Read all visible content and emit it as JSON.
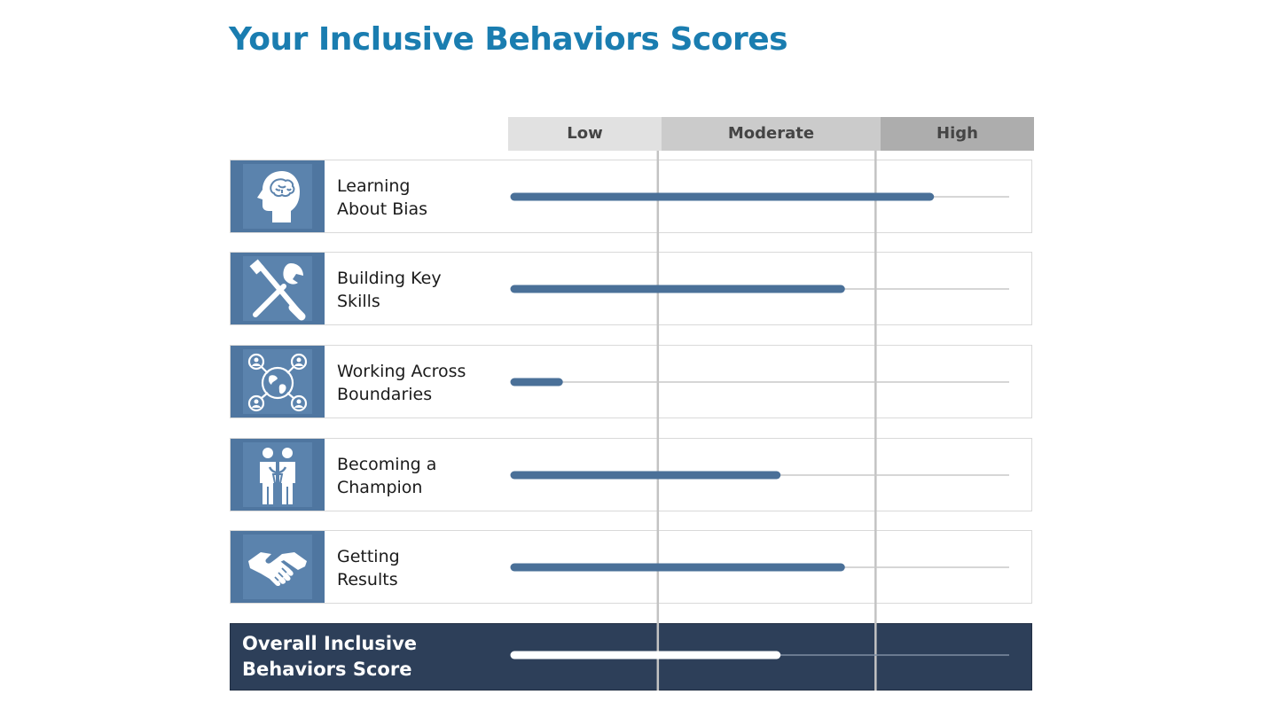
{
  "title": "Your Inclusive Behaviors Scores",
  "chart_data": {
    "type": "bar",
    "orientation": "horizontal",
    "bands": [
      "Low",
      "Moderate",
      "High"
    ],
    "band_boundaries": [
      0.29,
      0.73
    ],
    "categories": [
      "Learning About Bias",
      "Building Key Skills",
      "Working Across Boundaries",
      "Becoming a Champion",
      "Getting Results"
    ],
    "category_lines": [
      [
        "Learning",
        "About Bias"
      ],
      [
        "Building Key",
        "Skills"
      ],
      [
        "Working Across",
        "Boundaries"
      ],
      [
        "Becoming a",
        "Champion"
      ],
      [
        "Getting",
        "Results"
      ]
    ],
    "values": [
      0.84,
      0.66,
      0.09,
      0.53,
      0.66
    ],
    "overall": {
      "lines": [
        "Overall Inclusive",
        "Behaviors Score"
      ],
      "value": 0.53
    },
    "xlim": [
      0,
      1
    ],
    "bar_color": "#4a7098",
    "overall_bar_color": "#ffffff",
    "track_color": "#c8c8c8",
    "divider_color": "#c3c3c3"
  },
  "icons": [
    "brain-head-icon",
    "tools-icon",
    "global-network-icon",
    "people-support-icon",
    "handshake-icon"
  ],
  "colors": {
    "title": "#1a7db0",
    "icon_bg": "#4f76a0",
    "overall_bg": "#2d3f59"
  }
}
